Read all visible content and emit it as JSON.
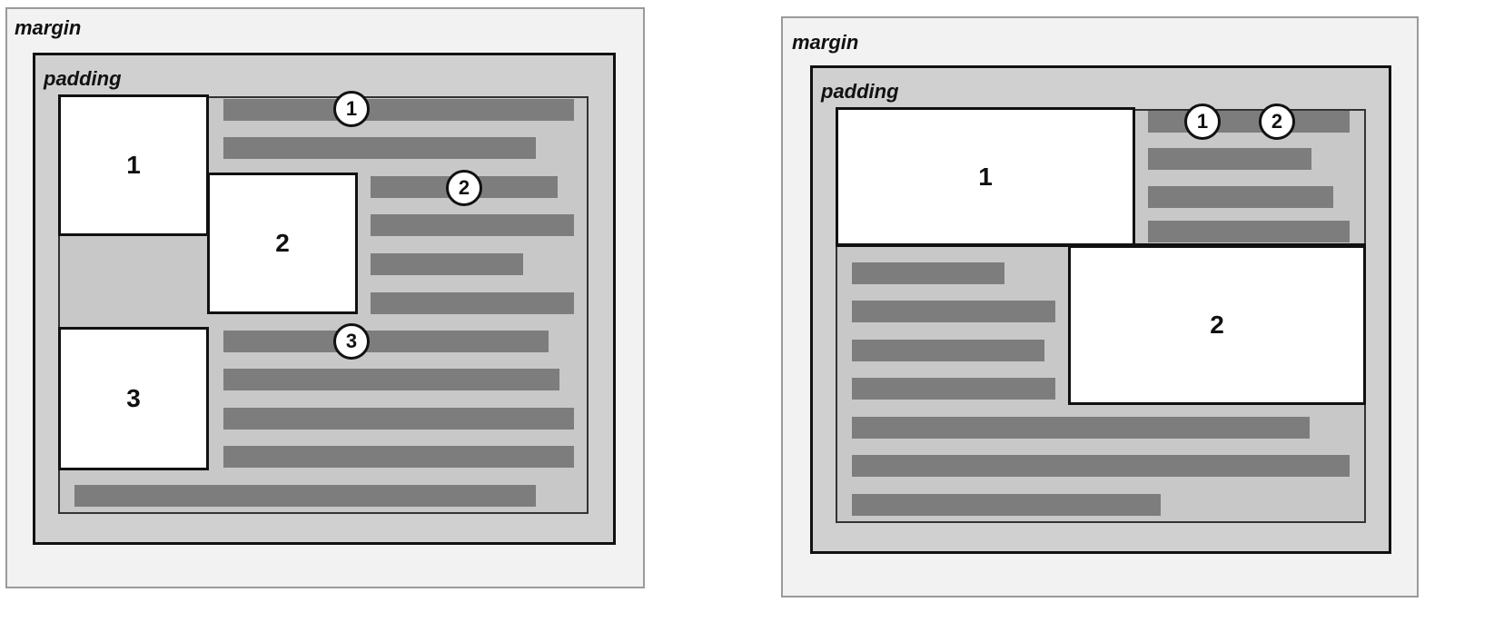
{
  "left_diagram": {
    "margin_label": "margin",
    "padding_label": "padding",
    "boxes": [
      "1",
      "2",
      "3"
    ],
    "markers": [
      "1",
      "2",
      "3"
    ]
  },
  "right_diagram": {
    "margin_label": "margin",
    "padding_label": "padding",
    "boxes": [
      "1",
      "2"
    ],
    "markers": [
      "1",
      "2"
    ]
  }
}
